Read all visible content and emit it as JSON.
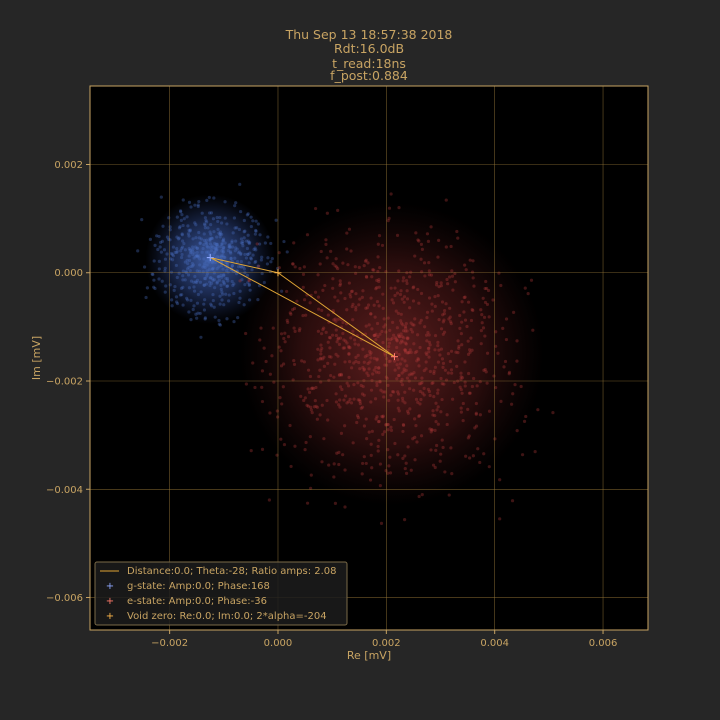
{
  "colors": {
    "figure_bg": "#262626",
    "axes_bg": "#000000",
    "text": "#c8a463",
    "grid": "#9a7a3a",
    "line": "#e0a535",
    "g_cloud": "#4a6fc4",
    "e_cloud": "#b23a3a",
    "g_marker": "#8fa8ff",
    "e_marker": "#ff7a6a",
    "zero_marker": "#ffb84a"
  },
  "title_lines": [
    "Thu Sep 13 18:57:38 2018",
    "Rdt:16.0dB",
    "t_read:18ns",
    "f_post:0.884"
  ],
  "chart_data": {
    "type": "scatter",
    "xlabel": "Re [mV]",
    "ylabel": "Im [mV]",
    "xlim": [
      -0.00347,
      0.00683
    ],
    "ylim": [
      -0.0066,
      0.00345
    ],
    "xticks": [
      {
        "value": -0.002,
        "label": "−0.002"
      },
      {
        "value": 0.0,
        "label": "0.000"
      },
      {
        "value": 0.002,
        "label": "0.002"
      },
      {
        "value": 0.004,
        "label": "0.004"
      },
      {
        "value": 0.006,
        "label": "0.006"
      }
    ],
    "yticks": [
      {
        "value": 0.002,
        "label": "0.002"
      },
      {
        "value": 0.0,
        "label": "0.000"
      },
      {
        "value": -0.002,
        "label": "−0.002"
      },
      {
        "value": -0.004,
        "label": "−0.004"
      },
      {
        "value": -0.006,
        "label": "−0.006"
      }
    ],
    "grid": true,
    "clouds": [
      {
        "state": "g",
        "center": [
          -0.00125,
          0.00025
        ],
        "spread": 0.0012
      },
      {
        "state": "e",
        "center": [
          0.0021,
          -0.0015
        ],
        "spread": 0.0028
      }
    ],
    "points": {
      "g_state": [
        -0.00125,
        0.00028
      ],
      "e_state": [
        0.00215,
        -0.00155
      ],
      "void_zero": [
        0.0,
        0.0
      ]
    },
    "legend_position": "lower-left",
    "legend": [
      {
        "marker": "line",
        "label": "Distance:0.0; Theta:-28; Ratio amps: 2.08"
      },
      {
        "marker": "g",
        "label": "g-state: Amp:0.0; Phase:168"
      },
      {
        "marker": "e",
        "label": "e-state: Amp:0.0; Phase:-36"
      },
      {
        "marker": "zero",
        "label": "Void zero: Re:0.0; Im:0.0; 2*alpha=-204"
      }
    ]
  }
}
